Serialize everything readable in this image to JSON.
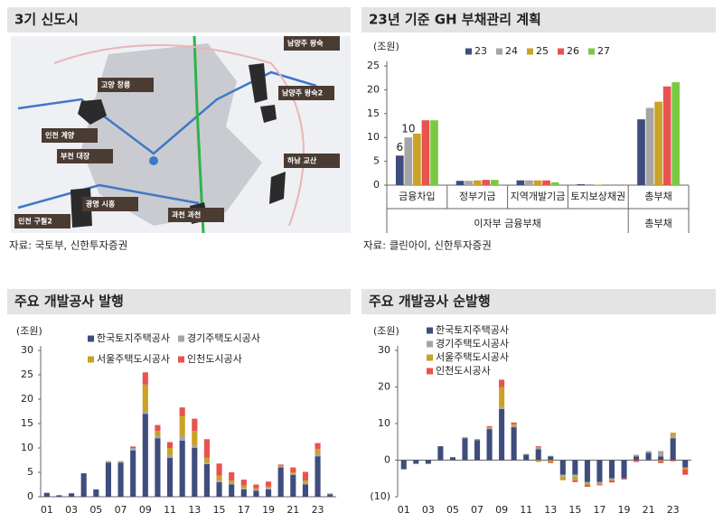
{
  "map": {
    "title": "3기 신도시",
    "labels": [
      "고양 창릉",
      "남양주 왕숙",
      "남양주 왕숙2",
      "인천 계양",
      "부천 대장",
      "하남 교산",
      "광명 시흥",
      "과천 과천",
      "인천 구월2"
    ],
    "source": "자료: 국토부, 신한투자증권"
  },
  "chart_data": [
    {
      "type": "bar",
      "title": "23년 기준 GH 부채관리 계획",
      "ylabel": "(조원)",
      "categories": [
        "금융차입",
        "정부기금",
        "지역개발기금",
        "토지보상채권",
        "총부채"
      ],
      "groups": [
        "이자부 금융부채",
        "총부채"
      ],
      "series": [
        {
          "name": "23",
          "color": "#3f4d7d",
          "values": [
            6.2,
            0.9,
            1.0,
            0.2,
            13.8
          ],
          "value_labels": [
            "6",
            null,
            null,
            null,
            null
          ]
        },
        {
          "name": "24",
          "color": "#a5a5a5",
          "values": [
            10,
            0.9,
            1.0,
            0.2,
            16.2
          ],
          "value_labels": [
            "10",
            null,
            null,
            null,
            null
          ]
        },
        {
          "name": "25",
          "color": "#c9a227",
          "values": [
            10.8,
            1.0,
            1.0,
            0.1,
            17.5
          ]
        },
        {
          "name": "26",
          "color": "#e8524f",
          "values": [
            13.6,
            1.1,
            1.0,
            0,
            20.7
          ]
        },
        {
          "name": "27",
          "color": "#7ac943",
          "values": [
            13.6,
            1.1,
            0.6,
            0,
            21.6
          ]
        }
      ],
      "ylim": [
        0,
        25
      ],
      "yticks": [
        0,
        5,
        10,
        15,
        20,
        25
      ],
      "stacked": false,
      "grid": false,
      "source": "자료: 클린아이, 신한투자증권"
    },
    {
      "type": "bar",
      "title": "주요 개발공사 발행",
      "ylabel": "(조원)",
      "categories": [
        "01",
        null,
        "03",
        null,
        "05",
        null,
        "07",
        null,
        "09",
        null,
        "11",
        null,
        "13",
        null,
        "15",
        null,
        "17",
        null,
        "19",
        null,
        "21",
        null,
        "23",
        null
      ],
      "series": [
        {
          "name": "한국토지주택공사",
          "color": "#3f4d7d",
          "values": [
            0.8,
            0.3,
            0.7,
            4.8,
            1.5,
            7.0,
            7.0,
            9.5,
            17,
            12,
            8,
            11.5,
            10,
            6.7,
            3,
            2.5,
            1.5,
            1.2,
            1.5,
            6,
            4.5,
            2.5,
            8.3,
            0.5
          ]
        },
        {
          "name": "경기주택도시공사",
          "color": "#a5a5a5",
          "values": [
            0,
            0,
            0,
            0,
            0,
            0.3,
            0.3,
            0.5,
            0.5,
            0.5,
            0.5,
            1,
            0.5,
            0.3,
            0.3,
            0.3,
            0.3,
            0.2,
            0.3,
            0.2,
            0.2,
            0.3,
            0.5,
            0.2
          ]
        },
        {
          "name": "서울주택도시공사",
          "color": "#c9a227",
          "values": [
            0,
            0,
            0,
            0,
            0,
            0,
            0,
            0,
            5.5,
            1,
            1.5,
            4,
            3,
            1,
            1,
            0.5,
            0.5,
            0.3,
            0.3,
            0.2,
            0.3,
            0.5,
            1,
            0
          ]
        },
        {
          "name": "인천도시공사",
          "color": "#e8524f",
          "values": [
            0,
            0,
            0,
            0,
            0,
            0,
            0,
            0.3,
            2.5,
            1.2,
            1.2,
            1.8,
            2.5,
            3.8,
            2.5,
            1.7,
            1.2,
            0.8,
            1,
            0.2,
            1,
            1.8,
            1.2,
            0
          ]
        }
      ],
      "ylim": [
        0,
        30
      ],
      "yticks": [
        0,
        5,
        10,
        15,
        20,
        25,
        30
      ],
      "stacked": true,
      "grid": false
    },
    {
      "type": "bar",
      "title": "주요 개발공사 순발행",
      "ylabel": "(조원)",
      "categories": [
        "01",
        null,
        "03",
        null,
        "05",
        null,
        "07",
        null,
        "09",
        null,
        "11",
        null,
        "13",
        null,
        "15",
        null,
        "17",
        null,
        "19",
        null,
        "21",
        null,
        "23",
        null
      ],
      "series": [
        {
          "name": "한국토지주택공사",
          "color": "#3f4d7d",
          "values": [
            -2.5,
            -1,
            -1,
            3.8,
            0.8,
            6,
            5.5,
            8.5,
            14,
            9,
            1.5,
            3,
            1,
            -4,
            -4,
            -6,
            -6,
            -5,
            -5,
            1,
            2,
            1,
            6,
            -2
          ]
        },
        {
          "name": "경기주택도시공사",
          "color": "#a5a5a5",
          "values": [
            0,
            0,
            0,
            0,
            0,
            0.3,
            0.3,
            0.5,
            0.5,
            0.3,
            0.2,
            0.5,
            0.2,
            -0.5,
            -0.5,
            -0.3,
            -0.3,
            -0.3,
            0,
            0.5,
            0.5,
            1.5,
            0.5,
            0
          ]
        },
        {
          "name": "서울주택도시공사",
          "color": "#c9a227",
          "values": [
            0,
            0,
            0,
            0,
            0,
            0,
            0,
            0,
            5.5,
            0.5,
            0,
            -0.5,
            -0.5,
            -1,
            -1,
            -0.5,
            -0.3,
            -0.3,
            0,
            0,
            0,
            -0.3,
            1,
            -0.5
          ]
        },
        {
          "name": "인천도시공사",
          "color": "#e8524f",
          "values": [
            0,
            0,
            0,
            0,
            0,
            0,
            0,
            0.3,
            2,
            0.5,
            0,
            0.3,
            -0.3,
            0,
            -0.5,
            -0.5,
            -0.3,
            -0.5,
            -0.3,
            -0.5,
            0,
            -0.5,
            -0.3,
            -1.5
          ]
        }
      ],
      "ylim": [
        -10,
        30
      ],
      "yticks": [
        {
          "value": -10,
          "label": "(10)"
        },
        0,
        10,
        20,
        30
      ],
      "stacked": true,
      "grid": false
    }
  ]
}
